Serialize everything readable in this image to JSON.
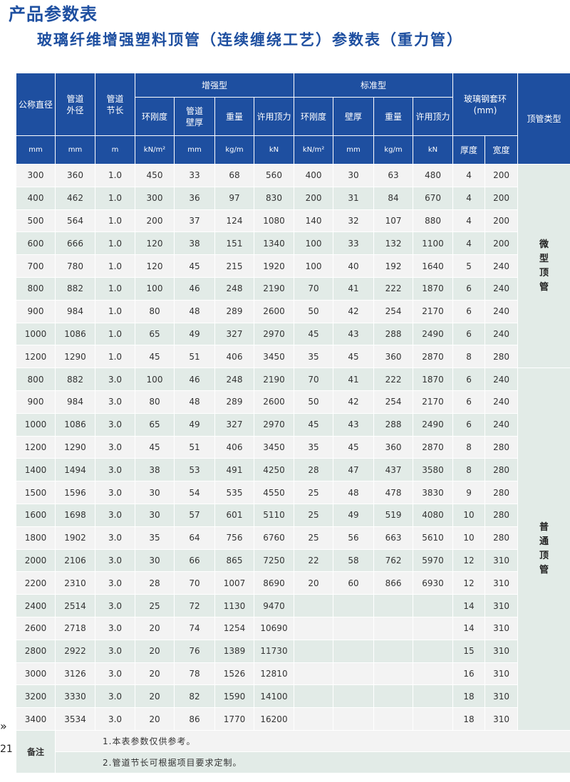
{
  "header": {
    "section_title": "产品参数表",
    "table_title": "玻璃纤维增强塑料顶管（连续缠绕工艺）参数表（重力管）"
  },
  "columns": {
    "nominal_diameter": "公称直径",
    "pipe_od": "管道外径",
    "pipe_length": "管道节长",
    "enhanced_group": "增强型",
    "standard_group": "标准型",
    "steel_ring_group": "玻璃钢套环(mm)",
    "pipe_type": "顶管类型",
    "ring_stiffness": "环刚度",
    "wall_thickness_enh": "管道壁厚",
    "wall_thickness_std": "壁厚",
    "weight": "重量",
    "allowed_force": "许用顶力",
    "ring_thickness": "厚度",
    "ring_width": "宽度"
  },
  "units": {
    "mm": "mm",
    "m": "m",
    "kn_m2": "kN/m²",
    "kg_m": "kg/m",
    "kn": "kN"
  },
  "rows": [
    [
      "300",
      "360",
      "1.0",
      "450",
      "33",
      "68",
      "560",
      "400",
      "30",
      "63",
      "480",
      "4",
      "200"
    ],
    [
      "400",
      "462",
      "1.0",
      "300",
      "36",
      "97",
      "830",
      "200",
      "31",
      "84",
      "670",
      "4",
      "200"
    ],
    [
      "500",
      "564",
      "1.0",
      "200",
      "37",
      "124",
      "1080",
      "140",
      "32",
      "107",
      "880",
      "4",
      "200"
    ],
    [
      "600",
      "666",
      "1.0",
      "120",
      "38",
      "151",
      "1340",
      "100",
      "33",
      "132",
      "1100",
      "4",
      "200"
    ],
    [
      "700",
      "780",
      "1.0",
      "120",
      "45",
      "215",
      "1920",
      "100",
      "40",
      "192",
      "1640",
      "5",
      "240"
    ],
    [
      "800",
      "882",
      "1.0",
      "100",
      "46",
      "248",
      "2190",
      "70",
      "41",
      "222",
      "1870",
      "6",
      "240"
    ],
    [
      "900",
      "984",
      "1.0",
      "80",
      "48",
      "289",
      "2600",
      "50",
      "42",
      "254",
      "2170",
      "6",
      "240"
    ],
    [
      "1000",
      "1086",
      "1.0",
      "65",
      "49",
      "327",
      "2970",
      "45",
      "43",
      "288",
      "2490",
      "6",
      "240"
    ],
    [
      "1200",
      "1290",
      "1.0",
      "45",
      "51",
      "406",
      "3450",
      "35",
      "45",
      "360",
      "2870",
      "8",
      "280"
    ],
    [
      "800",
      "882",
      "3.0",
      "100",
      "46",
      "248",
      "2190",
      "70",
      "41",
      "222",
      "1870",
      "6",
      "240"
    ],
    [
      "900",
      "984",
      "3.0",
      "80",
      "48",
      "289",
      "2600",
      "50",
      "42",
      "254",
      "2170",
      "6",
      "240"
    ],
    [
      "1000",
      "1086",
      "3.0",
      "65",
      "49",
      "327",
      "2970",
      "45",
      "43",
      "288",
      "2490",
      "6",
      "240"
    ],
    [
      "1200",
      "1290",
      "3.0",
      "45",
      "51",
      "406",
      "3450",
      "35",
      "45",
      "360",
      "2870",
      "8",
      "280"
    ],
    [
      "1400",
      "1494",
      "3.0",
      "38",
      "53",
      "491",
      "4250",
      "28",
      "47",
      "437",
      "3580",
      "8",
      "280"
    ],
    [
      "1500",
      "1596",
      "3.0",
      "30",
      "54",
      "535",
      "4550",
      "25",
      "48",
      "478",
      "3830",
      "9",
      "280"
    ],
    [
      "1600",
      "1698",
      "3.0",
      "30",
      "57",
      "601",
      "5110",
      "25",
      "49",
      "519",
      "4080",
      "10",
      "280"
    ],
    [
      "1800",
      "1902",
      "3.0",
      "35",
      "64",
      "756",
      "6760",
      "25",
      "56",
      "663",
      "5610",
      "10",
      "280"
    ],
    [
      "2000",
      "2106",
      "3.0",
      "30",
      "66",
      "865",
      "7250",
      "22",
      "58",
      "762",
      "5970",
      "12",
      "310"
    ],
    [
      "2200",
      "2310",
      "3.0",
      "28",
      "70",
      "1007",
      "8690",
      "20",
      "60",
      "866",
      "6930",
      "12",
      "310"
    ],
    [
      "2400",
      "2514",
      "3.0",
      "25",
      "72",
      "1130",
      "9470",
      "",
      "",
      "",
      "",
      "14",
      "310"
    ],
    [
      "2600",
      "2718",
      "3.0",
      "20",
      "74",
      "1254",
      "10690",
      "",
      "",
      "",
      "",
      "14",
      "310"
    ],
    [
      "2800",
      "2922",
      "3.0",
      "20",
      "76",
      "1389",
      "11730",
      "",
      "",
      "",
      "",
      "15",
      "310"
    ],
    [
      "3000",
      "3126",
      "3.0",
      "20",
      "78",
      "1526",
      "12810",
      "",
      "",
      "",
      "",
      "16",
      "310"
    ],
    [
      "3200",
      "3330",
      "3.0",
      "20",
      "82",
      "1590",
      "14100",
      "",
      "",
      "",
      "",
      "18",
      "310"
    ],
    [
      "3400",
      "3534",
      "3.0",
      "20",
      "86",
      "1770",
      "16200",
      "",
      "",
      "",
      "",
      "18",
      "310"
    ]
  ],
  "types": {
    "micro": [
      "微",
      "型",
      "顶",
      "管"
    ],
    "normal": [
      "普",
      "通",
      "顶",
      "管"
    ]
  },
  "notes": {
    "label": "备注",
    "note1": "1.本表参数仅供参考。",
    "note2": "2.管道节长可根据项目要求定制。"
  },
  "footer": {
    "page_number": "21",
    "arrow": "»"
  }
}
